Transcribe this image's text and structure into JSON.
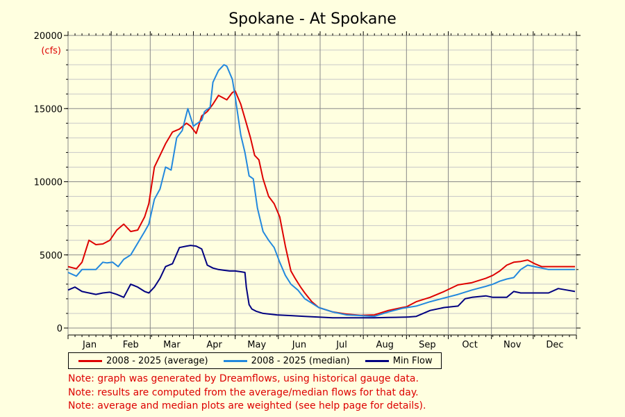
{
  "chart_data": {
    "type": "line",
    "title": "Spokane - At Spokane",
    "ylabel": "(cfs)",
    "ylim": [
      0,
      20000
    ],
    "yticks": [
      0,
      5000,
      10000,
      15000,
      20000
    ],
    "ytick_labels": [
      "0",
      "5000",
      "10000",
      "15000",
      "20000"
    ],
    "xlim": [
      0,
      365
    ],
    "month_labels": [
      "Jan",
      "Feb",
      "Mar",
      "Apr",
      "May",
      "Jun",
      "Jul",
      "Aug",
      "Sep",
      "Oct",
      "Nov",
      "Dec"
    ],
    "month_starts": [
      0,
      31,
      59,
      90,
      120,
      151,
      181,
      212,
      243,
      273,
      304,
      334,
      365
    ],
    "grid": true,
    "legend_position": "bottom",
    "series": [
      {
        "name": "2008 - 2025 (average)",
        "color": "#dd0000",
        "x": [
          0,
          6,
          10,
          15,
          20,
          25,
          30,
          35,
          40,
          45,
          50,
          55,
          58,
          62,
          66,
          70,
          75,
          80,
          85,
          88,
          92,
          96,
          100,
          104,
          108,
          110,
          114,
          118,
          120,
          124,
          128,
          131,
          134,
          137,
          140,
          144,
          148,
          152,
          156,
          160,
          163,
          167,
          170,
          175,
          180,
          190,
          200,
          210,
          220,
          230,
          235,
          240,
          243,
          245,
          250,
          260,
          270,
          280,
          290,
          300,
          305,
          310,
          315,
          320,
          325,
          330,
          335,
          340,
          345,
          352,
          358,
          364
        ],
        "values": [
          4200,
          4050,
          4500,
          6000,
          5700,
          5750,
          6000,
          6700,
          7100,
          6600,
          6700,
          7600,
          8500,
          11000,
          11800,
          12600,
          13400,
          13600,
          14000,
          13800,
          13300,
          14500,
          14800,
          15300,
          15900,
          15800,
          15600,
          16100,
          16200,
          15300,
          14000,
          13000,
          11800,
          11500,
          10200,
          9000,
          8500,
          7600,
          5600,
          3900,
          3400,
          2800,
          2400,
          1800,
          1400,
          1100,
          950,
          870,
          900,
          1200,
          1300,
          1400,
          1450,
          1550,
          1800,
          2100,
          2500,
          2950,
          3100,
          3400,
          3600,
          3900,
          4300,
          4500,
          4550,
          4650,
          4400,
          4200,
          4200,
          4200,
          4200,
          4200
        ]
      },
      {
        "name": "2008 - 2025 (median)",
        "color": "#2288dd",
        "x": [
          0,
          6,
          10,
          15,
          20,
          25,
          28,
          32,
          36,
          40,
          45,
          50,
          55,
          58,
          62,
          66,
          70,
          74,
          78,
          82,
          86,
          90,
          96,
          98,
          102,
          104,
          108,
          112,
          114,
          118,
          120,
          124,
          127,
          130,
          133,
          136,
          140,
          144,
          148,
          152,
          156,
          160,
          165,
          170,
          175,
          180,
          190,
          200,
          210,
          220,
          230,
          240,
          250,
          260,
          270,
          280,
          290,
          300,
          305,
          310,
          315,
          320,
          325,
          330,
          335,
          340,
          345,
          352,
          358,
          364
        ],
        "values": [
          3800,
          3550,
          4000,
          4000,
          4000,
          4500,
          4450,
          4500,
          4200,
          4700,
          5000,
          5800,
          6600,
          7100,
          8800,
          9500,
          11000,
          10800,
          13000,
          13500,
          15000,
          13800,
          14200,
          14800,
          15100,
          16800,
          17600,
          18000,
          17900,
          17000,
          15800,
          13200,
          12000,
          10400,
          10200,
          8200,
          6600,
          6000,
          5500,
          4500,
          3600,
          3000,
          2600,
          2000,
          1700,
          1400,
          1100,
          900,
          850,
          800,
          1100,
          1350,
          1500,
          1800,
          2050,
          2300,
          2600,
          2850,
          3000,
          3200,
          3350,
          3450,
          4000,
          4300,
          4200,
          4100,
          4000,
          4000,
          4000,
          4000
        ]
      },
      {
        "name": "Min Flow",
        "color": "#000080",
        "x": [
          0,
          5,
          10,
          15,
          20,
          25,
          30,
          35,
          40,
          45,
          50,
          55,
          58,
          62,
          66,
          70,
          75,
          80,
          85,
          88,
          92,
          96,
          100,
          104,
          108,
          112,
          116,
          120,
          124,
          127,
          128,
          130,
          132,
          135,
          140,
          150,
          160,
          170,
          180,
          190,
          200,
          210,
          220,
          230,
          235,
          240,
          243,
          245,
          250,
          255,
          260,
          270,
          280,
          285,
          290,
          300,
          305,
          310,
          315,
          320,
          325,
          330,
          335,
          340,
          345,
          352,
          358,
          364
        ],
        "values": [
          2600,
          2800,
          2500,
          2400,
          2300,
          2400,
          2450,
          2300,
          2100,
          3000,
          2800,
          2500,
          2400,
          2800,
          3400,
          4200,
          4400,
          5500,
          5600,
          5650,
          5600,
          5400,
          4300,
          4100,
          4000,
          3950,
          3900,
          3900,
          3850,
          3800,
          2800,
          1600,
          1300,
          1150,
          1000,
          900,
          850,
          800,
          750,
          700,
          700,
          700,
          700,
          720,
          730,
          740,
          750,
          760,
          800,
          1000,
          1200,
          1400,
          1500,
          2000,
          2100,
          2200,
          2100,
          2100,
          2100,
          2500,
          2400,
          2400,
          2400,
          2400,
          2400,
          2700,
          2600,
          2500
        ]
      }
    ]
  },
  "notes": [
    "Note: graph was generated by Dreamflows, using historical gauge data.",
    "Note: results are computed from the average/median flows for that day.",
    "Note: average and median plots are weighted (see help page for details)."
  ]
}
